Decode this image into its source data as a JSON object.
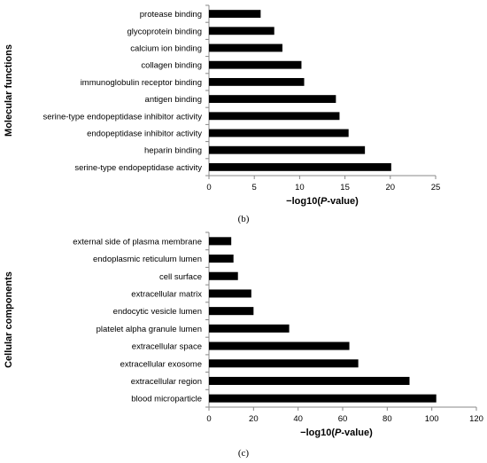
{
  "chart_data": [
    {
      "type": "bar",
      "orientation": "horizontal",
      "panel_label": "(b)",
      "ylabel": "Molecular functions",
      "xlabel_prefix": "−log10(",
      "xlabel_italic": "P",
      "xlabel_suffix": "-value)",
      "xlim": [
        0,
        25
      ],
      "xticks": [
        0,
        5,
        10,
        15,
        20,
        25
      ],
      "categories": [
        "protease binding",
        "glycoprotein binding",
        "calcium ion binding",
        "collagen binding",
        "immunoglobulin receptor binding",
        "antigen binding",
        "serine-type endopeptidase inhibitor activity",
        "endopeptidase inhibitor activity",
        "heparin binding",
        "serine-type endopeptidase activity"
      ],
      "values": [
        5.7,
        7.2,
        8.1,
        10.2,
        10.5,
        14.0,
        14.4,
        15.4,
        17.2,
        20.1
      ],
      "bar_color": "#000000"
    },
    {
      "type": "bar",
      "orientation": "horizontal",
      "panel_label": "(c)",
      "ylabel": "Cellular components",
      "xlabel_prefix": "−log10(",
      "xlabel_italic": "P",
      "xlabel_suffix": "-value)",
      "xlim": [
        0,
        120
      ],
      "xticks": [
        0,
        20,
        40,
        60,
        80,
        100,
        120
      ],
      "categories": [
        "external side of plasma membrane",
        "endoplasmic reticulum lumen",
        "cell surface",
        "extracellular matrix",
        "endocytic vesicle lumen",
        "platelet alpha granule lumen",
        "extracellular space",
        "extracellular exosome",
        "extracellular region",
        "blood microparticle"
      ],
      "values": [
        10,
        11,
        13,
        19,
        20,
        36,
        63,
        67,
        90,
        102
      ],
      "bar_color": "#000000"
    }
  ]
}
